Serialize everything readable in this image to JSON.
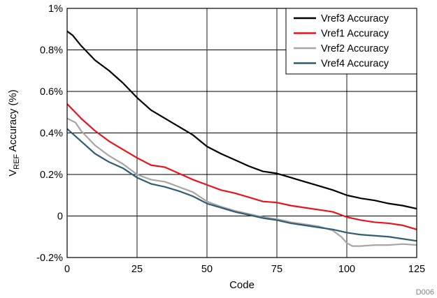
{
  "chart_data": {
    "type": "line",
    "title": "",
    "xlabel": "Code",
    "ylabel": {
      "main": "V",
      "subscript": "REF",
      "rest": " Accuracy (%)"
    },
    "figure_id": "D006",
    "xlim": [
      0,
      125
    ],
    "ylim": [
      -0.2,
      1.0
    ],
    "x_ticks": [
      0,
      25,
      50,
      75,
      100,
      125
    ],
    "x_tick_labels": [
      "0",
      "25",
      "50",
      "75",
      "100",
      "125"
    ],
    "y_ticks": [
      -0.2,
      0,
      0.2,
      0.4,
      0.6,
      0.8,
      1.0
    ],
    "y_tick_labels": [
      "-0.2%",
      "0",
      "0.2%",
      "0.4%",
      "0.6%",
      "0.8%",
      "1%"
    ],
    "grid": true,
    "legend_position": "top-right",
    "series": [
      {
        "name": "Vref3 Accuracy",
        "color": "#000000",
        "points": [
          [
            0,
            0.89
          ],
          [
            2,
            0.87
          ],
          [
            5,
            0.82
          ],
          [
            10,
            0.75
          ],
          [
            15,
            0.7
          ],
          [
            20,
            0.64
          ],
          [
            25,
            0.57
          ],
          [
            30,
            0.51
          ],
          [
            35,
            0.47
          ],
          [
            40,
            0.43
          ],
          [
            45,
            0.39
          ],
          [
            50,
            0.335
          ],
          [
            55,
            0.3
          ],
          [
            60,
            0.27
          ],
          [
            65,
            0.24
          ],
          [
            70,
            0.215
          ],
          [
            75,
            0.205
          ],
          [
            80,
            0.185
          ],
          [
            85,
            0.165
          ],
          [
            90,
            0.145
          ],
          [
            95,
            0.125
          ],
          [
            100,
            0.1
          ],
          [
            105,
            0.085
          ],
          [
            110,
            0.075
          ],
          [
            115,
            0.06
          ],
          [
            120,
            0.05
          ],
          [
            125,
            0.035
          ]
        ]
      },
      {
        "name": "Vref1 Accuracy",
        "color": "#e8141b",
        "points": [
          [
            0,
            0.54
          ],
          [
            5,
            0.47
          ],
          [
            10,
            0.41
          ],
          [
            15,
            0.36
          ],
          [
            20,
            0.32
          ],
          [
            25,
            0.28
          ],
          [
            30,
            0.245
          ],
          [
            35,
            0.235
          ],
          [
            40,
            0.205
          ],
          [
            45,
            0.175
          ],
          [
            50,
            0.15
          ],
          [
            55,
            0.125
          ],
          [
            60,
            0.11
          ],
          [
            65,
            0.09
          ],
          [
            70,
            0.07
          ],
          [
            75,
            0.065
          ],
          [
            80,
            0.05
          ],
          [
            85,
            0.04
          ],
          [
            90,
            0.03
          ],
          [
            95,
            0.02
          ],
          [
            100,
            -0.005
          ],
          [
            105,
            -0.02
          ],
          [
            110,
            -0.03
          ],
          [
            115,
            -0.035
          ],
          [
            120,
            -0.045
          ],
          [
            125,
            -0.065
          ]
        ]
      },
      {
        "name": "Vref2 Accuracy",
        "color": "#a6a6a6",
        "points": [
          [
            0,
            0.47
          ],
          [
            3,
            0.45
          ],
          [
            5,
            0.41
          ],
          [
            10,
            0.34
          ],
          [
            15,
            0.29
          ],
          [
            20,
            0.25
          ],
          [
            25,
            0.2
          ],
          [
            30,
            0.175
          ],
          [
            35,
            0.165
          ],
          [
            40,
            0.14
          ],
          [
            45,
            0.115
          ],
          [
            50,
            0.07
          ],
          [
            55,
            0.045
          ],
          [
            60,
            0.025
          ],
          [
            65,
            0.01
          ],
          [
            70,
            -0.005
          ],
          [
            75,
            -0.015
          ],
          [
            80,
            -0.03
          ],
          [
            85,
            -0.04
          ],
          [
            90,
            -0.05
          ],
          [
            95,
            -0.07
          ],
          [
            98,
            -0.1
          ],
          [
            100,
            -0.13
          ],
          [
            102,
            -0.145
          ],
          [
            105,
            -0.145
          ],
          [
            110,
            -0.14
          ],
          [
            115,
            -0.14
          ],
          [
            120,
            -0.135
          ],
          [
            125,
            -0.14
          ]
        ]
      },
      {
        "name": "Vref4 Accuracy",
        "color": "#2f5d74",
        "points": [
          [
            0,
            0.42
          ],
          [
            5,
            0.36
          ],
          [
            10,
            0.3
          ],
          [
            15,
            0.26
          ],
          [
            20,
            0.23
          ],
          [
            25,
            0.185
          ],
          [
            30,
            0.155
          ],
          [
            35,
            0.14
          ],
          [
            40,
            0.12
          ],
          [
            45,
            0.095
          ],
          [
            50,
            0.06
          ],
          [
            55,
            0.04
          ],
          [
            60,
            0.02
          ],
          [
            65,
            0.005
          ],
          [
            70,
            -0.01
          ],
          [
            75,
            -0.02
          ],
          [
            80,
            -0.035
          ],
          [
            85,
            -0.045
          ],
          [
            90,
            -0.055
          ],
          [
            95,
            -0.065
          ],
          [
            100,
            -0.08
          ],
          [
            105,
            -0.09
          ],
          [
            110,
            -0.095
          ],
          [
            115,
            -0.1
          ],
          [
            120,
            -0.11
          ],
          [
            125,
            -0.12
          ]
        ]
      }
    ]
  }
}
